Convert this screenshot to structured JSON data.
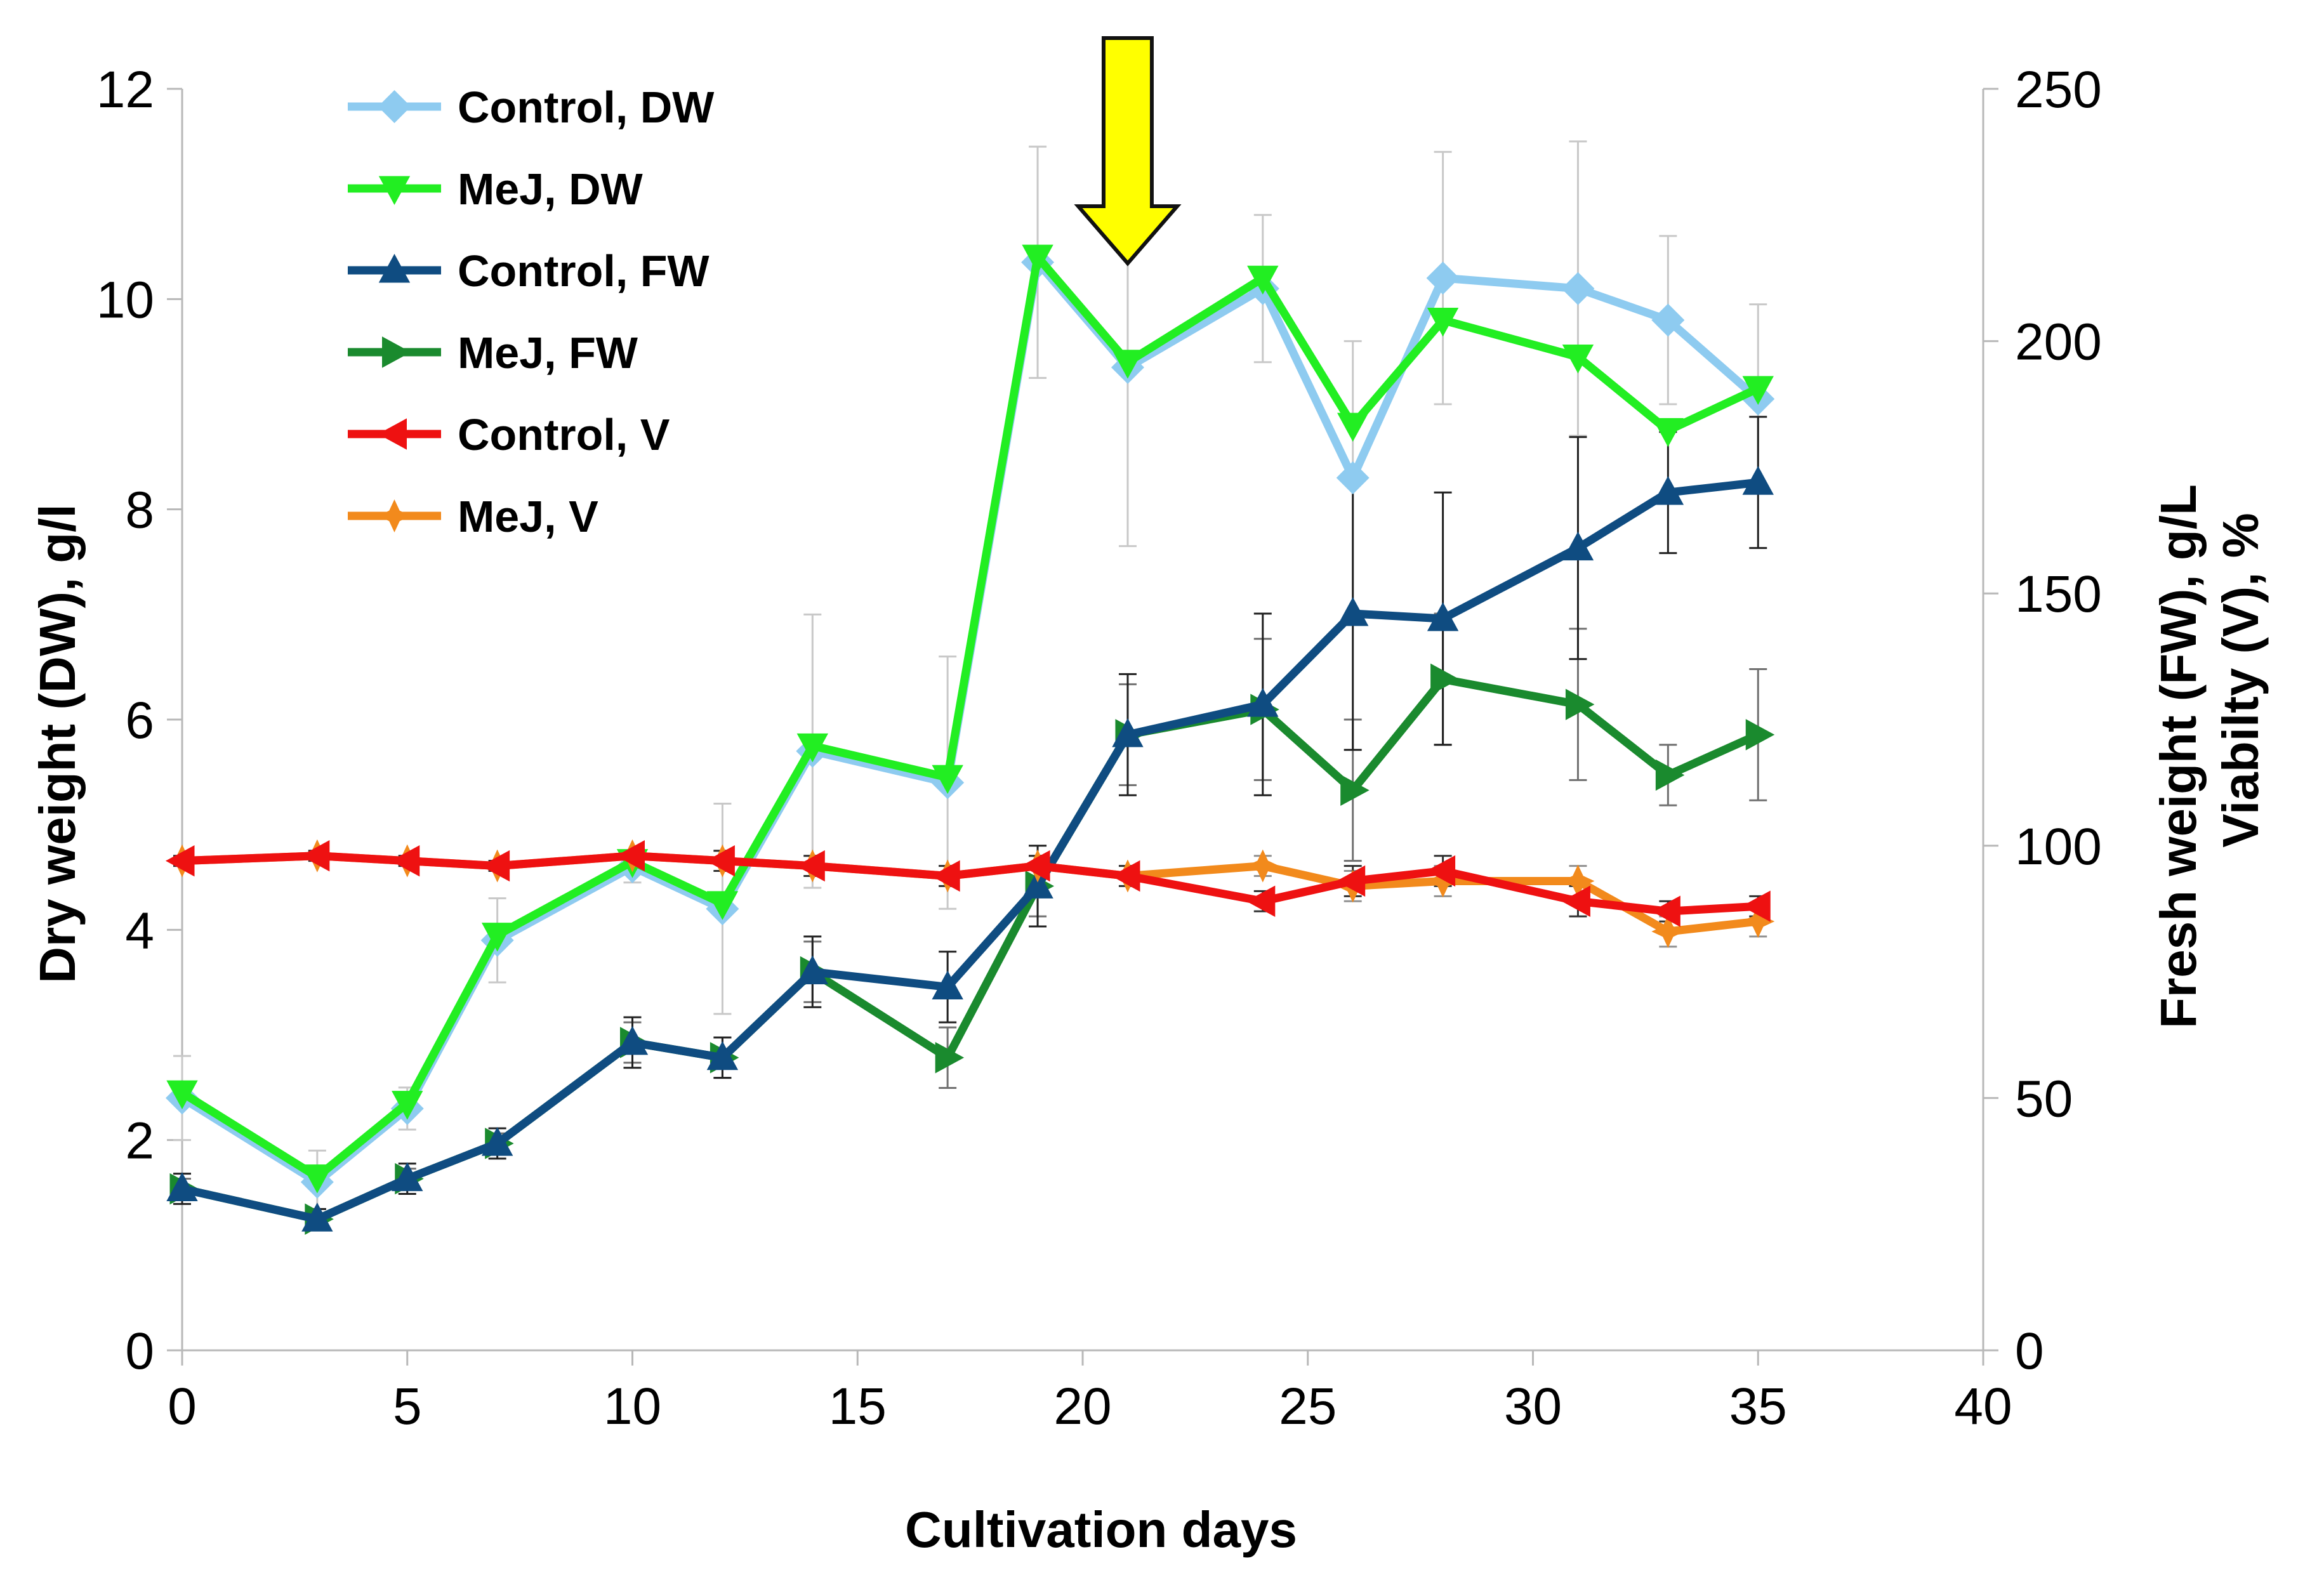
{
  "chart_data": {
    "type": "line",
    "xlabel": "Cultivation days",
    "ylabel_left": "Dry weight (DW), g/l",
    "ylabel_right": [
      "Fresh weight (FW), g/L",
      "Viabilty (V), %"
    ],
    "xlim": [
      0,
      40
    ],
    "xticks": [
      0,
      5,
      10,
      15,
      20,
      25,
      30,
      35,
      40
    ],
    "ylim_left": [
      0,
      12
    ],
    "yticks_left": [
      0,
      2,
      4,
      6,
      8,
      10,
      12
    ],
    "ylim_right": [
      0,
      250
    ],
    "yticks_right": [
      0,
      50,
      100,
      150,
      200,
      250
    ],
    "legend_position": "top-left",
    "annotation": {
      "type": "arrow",
      "direction": "down",
      "x": 21,
      "color": "#ffff00"
    },
    "series": [
      {
        "name": "Control, DW",
        "axis": "left",
        "color": "#8ecbf0",
        "marker": "diamond",
        "x": [
          0,
          3,
          5,
          7,
          10,
          12,
          14,
          17,
          19,
          21,
          24,
          26,
          28,
          31,
          33,
          35
        ],
        "y": [
          2.4,
          1.6,
          2.3,
          3.9,
          4.6,
          4.2,
          5.7,
          5.4,
          10.35,
          9.35,
          10.1,
          8.3,
          10.2,
          10.1,
          9.8,
          9.05
        ],
        "err": [
          0.4,
          0.3,
          0.2,
          0.4,
          0.15,
          1.0,
          1.3,
          1.2,
          1.1,
          1.7,
          0.7,
          1.3,
          1.2,
          1.4,
          0.8,
          0.9
        ]
      },
      {
        "name": "MeJ, DW",
        "axis": "left",
        "color": "#22ee22",
        "marker": "triangle-down",
        "x": [
          0,
          3,
          5,
          7,
          10,
          12,
          14,
          17,
          19,
          21,
          24,
          26,
          28,
          31,
          33,
          35
        ],
        "y": [
          2.45,
          1.65,
          2.35,
          3.95,
          4.65,
          4.25,
          5.75,
          5.45,
          10.4,
          9.4,
          10.2,
          8.8,
          9.8,
          9.45,
          8.75,
          9.15
        ],
        "err": [
          0.0,
          0.0,
          0.0,
          0.0,
          0.0,
          0.0,
          0.0,
          0.0,
          0.0,
          0.0,
          0.0,
          0.0,
          0.0,
          0.0,
          0.0,
          0.0
        ]
      },
      {
        "name": "Control, FW",
        "axis": "right",
        "color": "#0f4c81",
        "marker": "triangle-up",
        "x": [
          0,
          3,
          5,
          7,
          10,
          12,
          14,
          17,
          19,
          21,
          24,
          26,
          28,
          31,
          33,
          35
        ],
        "y": [
          32,
          26,
          34,
          41,
          61,
          58,
          75,
          72,
          92,
          122,
          128,
          146,
          145,
          159,
          170,
          172
        ],
        "err": [
          3,
          2,
          3,
          3,
          5,
          4,
          7,
          7,
          8,
          12,
          18,
          27,
          25,
          22,
          12,
          13
        ]
      },
      {
        "name": "MeJ, FW",
        "axis": "right",
        "color": "#1a8a2e",
        "marker": "triangle-right",
        "x": [
          0,
          3,
          5,
          7,
          10,
          12,
          14,
          17,
          19,
          21,
          24,
          26,
          28,
          31,
          33,
          35
        ],
        "y": [
          32,
          26,
          34,
          41,
          61,
          58,
          75,
          58,
          92,
          122,
          127,
          111,
          133,
          128,
          114,
          122
        ],
        "err": [
          2,
          2,
          2,
          2,
          4,
          4,
          6,
          6,
          6,
          10,
          14,
          14,
          13,
          15,
          6,
          13
        ]
      },
      {
        "name": "Control, V",
        "axis": "right",
        "color": "#ee1111",
        "marker": "triangle-left",
        "x": [
          0,
          3,
          5,
          7,
          10,
          12,
          14,
          17,
          19,
          21,
          24,
          26,
          28,
          31,
          33,
          35
        ],
        "y": [
          97,
          98,
          97,
          96,
          98,
          97,
          96,
          94,
          96,
          94,
          89,
          93,
          95,
          89,
          87,
          88
        ],
        "err": [
          1,
          1,
          1,
          1,
          1,
          2,
          2,
          2,
          2,
          2,
          2,
          3,
          3,
          3,
          2,
          2
        ]
      },
      {
        "name": "MeJ, V",
        "axis": "right",
        "color": "#f28a1c",
        "marker": "star",
        "x": [
          0,
          3,
          5,
          7,
          10,
          12,
          14,
          17,
          19,
          21,
          24,
          26,
          28,
          31,
          33,
          35
        ],
        "y": [
          97,
          98,
          97,
          96,
          98,
          97,
          96,
          94,
          96,
          94,
          96,
          92,
          93,
          93,
          83,
          85
        ],
        "err": [
          1,
          1,
          1,
          1,
          1,
          2,
          2,
          2,
          2,
          2,
          2,
          3,
          3,
          3,
          3,
          3
        ]
      }
    ]
  }
}
